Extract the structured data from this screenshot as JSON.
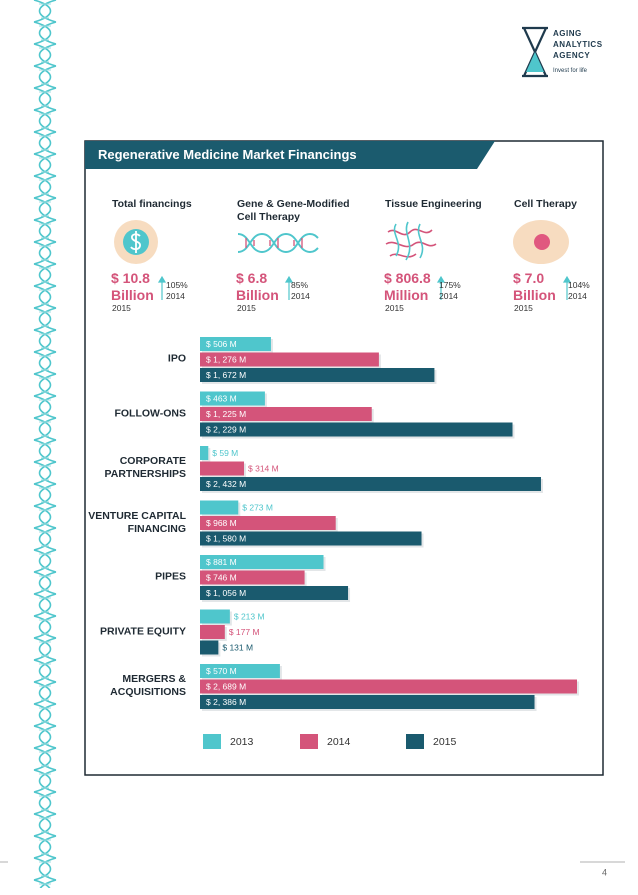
{
  "logo": {
    "lines": [
      "AGING",
      "ANALYTICS",
      "AGENCY"
    ],
    "tagline": "Invest for life"
  },
  "panel_title": "Regenerative Medicine Market Financings",
  "stats": [
    {
      "title": "Total financings",
      "value": "$ 10.8",
      "unit": "Billion",
      "year": "2015",
      "growth": "105%",
      "growth_year": "2014"
    },
    {
      "title": "Gene & Gene-Modified Cell Therapy",
      "value": "$ 6.8",
      "unit": "Billion",
      "year": "2015",
      "growth": "85%",
      "growth_year": "2014"
    },
    {
      "title": "Tissue Engineering",
      "value": "$ 806.8",
      "unit": "Million",
      "year": "2015",
      "growth": "175%",
      "growth_year": "2014"
    },
    {
      "title": "Cell Therapy",
      "value": "$ 7.0",
      "unit": "Billion",
      "year": "2015",
      "growth": "104%",
      "growth_year": "2014"
    }
  ],
  "chart_data": {
    "type": "hbar",
    "categories": [
      "IPO",
      "FOLLOW-ONS",
      "CORPORATE PARTNERSHIPS",
      "VENTURE CAPITAL FINANCING",
      "PIPES",
      "PRIVATE EQUITY",
      "MERGERS & ACQUISITIONS"
    ],
    "series": [
      {
        "name": "2013",
        "color": "#4fc6cc",
        "values": [
          506,
          463,
          59,
          273,
          881,
          213,
          570
        ],
        "value_labels": [
          "$ 506 M",
          "$ 463 M",
          "$ 59 M",
          "$ 273 M",
          "$ 881 M",
          "$ 213 M",
          "$ 570 M"
        ]
      },
      {
        "name": "2014",
        "color": "#d4547a",
        "values": [
          1276,
          1225,
          314,
          968,
          746,
          177,
          2689
        ],
        "value_labels": [
          "$ 1, 276 M",
          "$ 1, 225 M",
          "$ 314 M",
          "$ 968 M",
          "$ 746 M",
          "$ 177 M",
          "$ 2, 689 M"
        ]
      },
      {
        "name": "2015",
        "color": "#1a5a6e",
        "values": [
          1672,
          2229,
          2432,
          1580,
          1056,
          131,
          2386
        ],
        "value_labels": [
          "$ 1, 672 M",
          "$ 2, 229 M",
          "$ 2, 432 M",
          "$ 1, 580 M",
          "$ 1, 056 M",
          "$ 131 M",
          "$ 2, 386 M"
        ]
      }
    ]
  },
  "page_number": "4"
}
